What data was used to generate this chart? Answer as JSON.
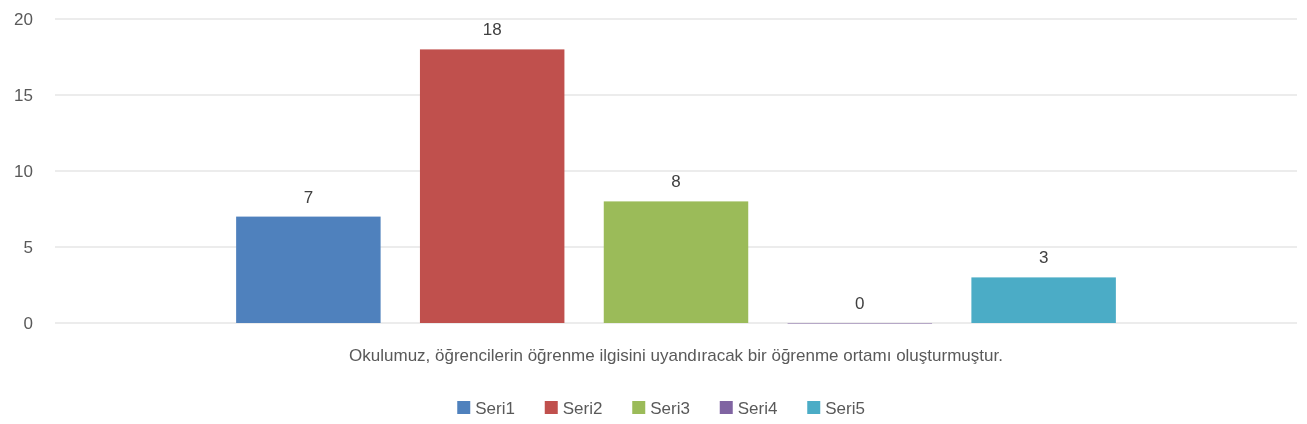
{
  "chart_data": {
    "type": "bar",
    "categories": [
      "Okulumuz, öğrencilerin öğrenme ilgisini uyandıracak bir öğrenme ortamı oluşturmuştur."
    ],
    "series": [
      {
        "name": "Seri1",
        "color": "#4f81bd",
        "values": [
          7
        ]
      },
      {
        "name": "Seri2",
        "color": "#c0504d",
        "values": [
          18
        ]
      },
      {
        "name": "Seri3",
        "color": "#9bbb59",
        "values": [
          8
        ]
      },
      {
        "name": "Seri4",
        "color": "#8064a2",
        "values": [
          0
        ]
      },
      {
        "name": "Seri5",
        "color": "#4bacc6",
        "values": [
          3
        ]
      }
    ],
    "ylim": [
      0,
      20
    ],
    "yticks": [
      0,
      5,
      10,
      15,
      20
    ],
    "grid": "y",
    "legend": "bottom",
    "data_labels": true
  }
}
